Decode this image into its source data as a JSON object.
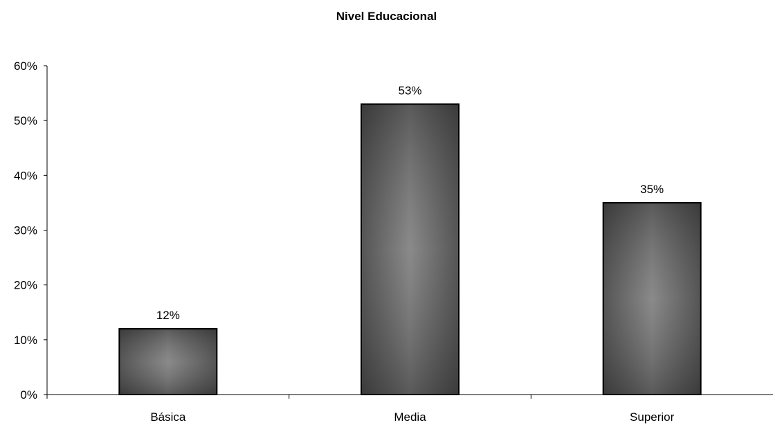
{
  "chart_data": {
    "type": "bar",
    "title": "Nivel Educacional",
    "categories": [
      "Básica",
      "Media",
      "Superior"
    ],
    "values": [
      12,
      53,
      35
    ],
    "data_labels": [
      "12%",
      "53%",
      "35%"
    ],
    "ylim": [
      0,
      60
    ],
    "yticks": [
      0,
      10,
      20,
      30,
      40,
      50,
      60
    ],
    "ytick_labels": [
      "0%",
      "10%",
      "20%",
      "30%",
      "40%",
      "50%",
      "60%"
    ],
    "grid": false,
    "legend": "none",
    "bar_color": "#3a3a3a",
    "bar_highlight_color": "#8a8a8a"
  }
}
